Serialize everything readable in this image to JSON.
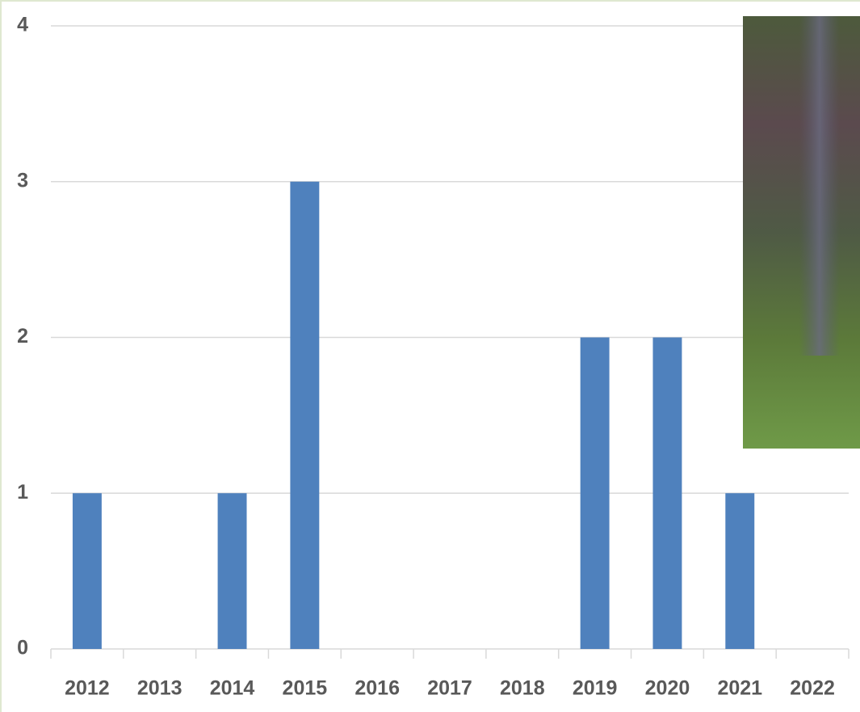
{
  "chart_data": {
    "type": "bar",
    "categories": [
      "2012",
      "2013",
      "2014",
      "2015",
      "2016",
      "2017",
      "2018",
      "2019",
      "2020",
      "2021",
      "2022"
    ],
    "values": [
      1,
      0,
      1,
      3,
      0,
      0,
      0,
      2,
      2,
      1,
      0
    ],
    "color": "#4f81bd",
    "ylim": [
      0,
      4
    ],
    "yticks": [
      0,
      1,
      2,
      3,
      4
    ],
    "grid": true
  }
}
